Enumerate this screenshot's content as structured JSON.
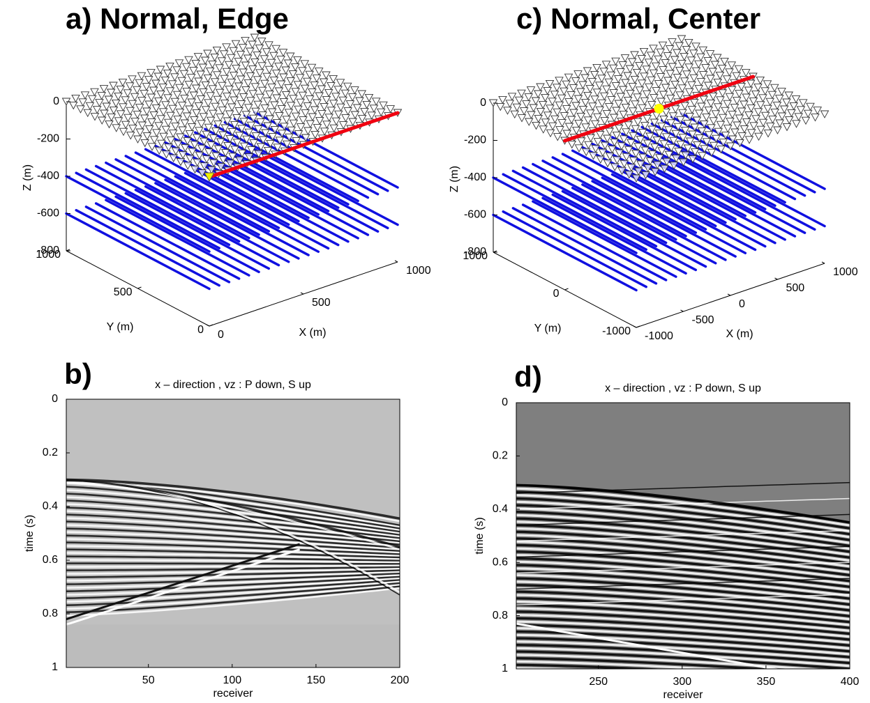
{
  "chart_data": [
    {
      "type": "survey3d",
      "title": "a) Normal, Edge",
      "xlabel": "X (m)",
      "ylabel": "Y (m)",
      "zlabel": "Z (m)",
      "xlim": [
        0,
        1000
      ],
      "ylim": [
        0,
        1000
      ],
      "zlim": [
        -800,
        0
      ],
      "xticks": [
        0,
        500,
        1000
      ],
      "yticks": [
        0,
        500,
        1000
      ],
      "zticks": [
        0,
        -200,
        -400,
        -600,
        -800
      ]
    },
    {
      "type": "seismogram",
      "title": "b)",
      "subtitle": "x – direction , vz : P down, S up",
      "xlabel": "receiver",
      "ylabel": "time (s)",
      "xlim": [
        1,
        200
      ],
      "ylim": [
        0,
        1
      ],
      "yreverse": true,
      "xticks": [
        50,
        100,
        150,
        200
      ],
      "yticks": [
        0,
        0.2,
        0.4,
        0.6,
        0.8,
        1
      ]
    },
    {
      "type": "survey3d",
      "title": "c) Normal, Center",
      "xlabel": "X (m)",
      "ylabel": "Y (m)",
      "zlabel": "Z (m)",
      "xlim": [
        -1000,
        1000
      ],
      "ylim": [
        -1000,
        1000
      ],
      "zlim": [
        -800,
        0
      ],
      "xticks": [
        -1000,
        -500,
        0,
        500,
        1000
      ],
      "yticks": [
        -1000,
        0,
        1000
      ],
      "zticks": [
        0,
        -200,
        -400,
        -600,
        -800
      ]
    },
    {
      "type": "seismogram",
      "title": "d)",
      "subtitle": "x – direction , vz : P down, S up",
      "xlabel": "receiver",
      "ylabel": "time (s)",
      "xlim": [
        201,
        400
      ],
      "ylim": [
        0,
        1
      ],
      "yreverse": true,
      "xticks": [
        250,
        300,
        350,
        400
      ],
      "yticks": [
        0,
        0.2,
        0.4,
        0.6,
        0.8,
        1
      ]
    }
  ]
}
